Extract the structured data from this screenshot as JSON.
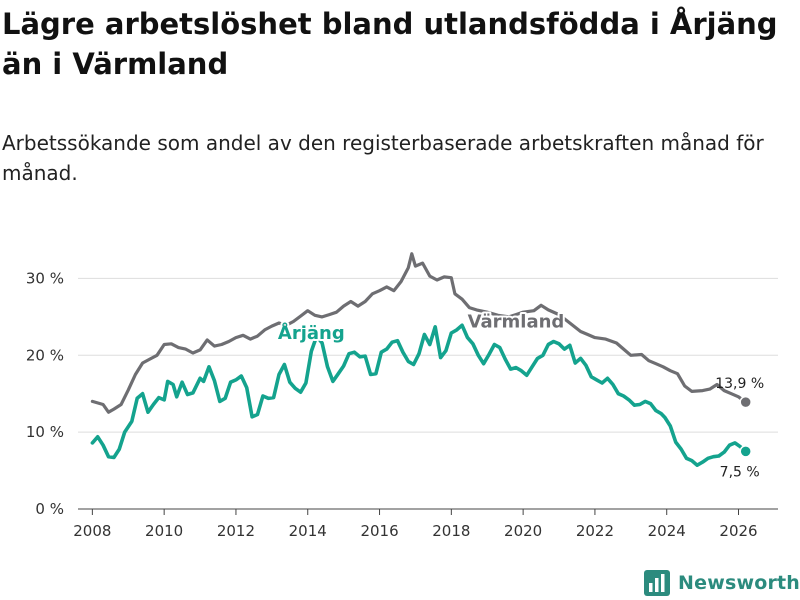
{
  "title": "Lägre arbetslöshet bland utlandsfödda i Årjäng än i Värmland",
  "subtitle": "Arbetssökande som andel av den registerbaserade arbetskraften månad för månad.",
  "logo": {
    "text": "Newsworthy"
  },
  "chart_data": {
    "type": "line",
    "title": "Lägre arbetslöshet bland utlandsfödda i Årjäng än i Värmland",
    "subtitle": "Arbetssökande som andel av den registerbaserade arbetskraften månad för månad.",
    "xlabel": "",
    "ylabel": "",
    "xlim": [
      2007.6,
      2027.1
    ],
    "ylim": [
      0,
      35
    ],
    "x_ticks": [
      {
        "value": 2008,
        "label": "2008"
      },
      {
        "value": 2010,
        "label": "2010"
      },
      {
        "value": 2012,
        "label": "2012"
      },
      {
        "value": 2014,
        "label": "2014"
      },
      {
        "value": 2016,
        "label": "2016"
      },
      {
        "value": 2018,
        "label": "2018"
      },
      {
        "value": 2020,
        "label": "2020"
      },
      {
        "value": 2022,
        "label": "2022"
      },
      {
        "value": 2024,
        "label": "2024"
      },
      {
        "value": 2026,
        "label": "2026"
      }
    ],
    "y_ticks": [
      {
        "value": 0,
        "label": "0 %"
      },
      {
        "value": 10,
        "label": "10 %"
      },
      {
        "value": 20,
        "label": "20 %"
      },
      {
        "value": 30,
        "label": "30 %"
      }
    ],
    "grid": "horizontal",
    "series": [
      {
        "name": "Värmland",
        "color": "#6e6e72",
        "end_label": "13,9 %",
        "end_marker": true,
        "points": [
          [
            2008.0,
            14.0
          ],
          [
            2008.3,
            13.6
          ],
          [
            2008.45,
            12.6
          ],
          [
            2008.6,
            13.0
          ],
          [
            2008.8,
            13.6
          ],
          [
            2009.0,
            15.5
          ],
          [
            2009.2,
            17.5
          ],
          [
            2009.4,
            19.0
          ],
          [
            2009.6,
            19.5
          ],
          [
            2009.8,
            20.0
          ],
          [
            2010.0,
            21.4
          ],
          [
            2010.2,
            21.5
          ],
          [
            2010.4,
            21.0
          ],
          [
            2010.6,
            20.8
          ],
          [
            2010.8,
            20.3
          ],
          [
            2011.0,
            20.7
          ],
          [
            2011.2,
            22.0
          ],
          [
            2011.4,
            21.2
          ],
          [
            2011.6,
            21.4
          ],
          [
            2011.8,
            21.8
          ],
          [
            2012.0,
            22.3
          ],
          [
            2012.2,
            22.6
          ],
          [
            2012.4,
            22.1
          ],
          [
            2012.6,
            22.5
          ],
          [
            2012.8,
            23.3
          ],
          [
            2013.0,
            23.8
          ],
          [
            2013.2,
            24.2
          ],
          [
            2013.4,
            23.9
          ],
          [
            2013.6,
            24.4
          ],
          [
            2013.8,
            25.1
          ],
          [
            2014.0,
            25.8
          ],
          [
            2014.2,
            25.2
          ],
          [
            2014.4,
            25.0
          ],
          [
            2014.6,
            25.3
          ],
          [
            2014.8,
            25.6
          ],
          [
            2015.0,
            26.4
          ],
          [
            2015.2,
            27.0
          ],
          [
            2015.4,
            26.4
          ],
          [
            2015.6,
            27.0
          ],
          [
            2015.8,
            28.0
          ],
          [
            2016.0,
            28.4
          ],
          [
            2016.2,
            28.9
          ],
          [
            2016.4,
            28.4
          ],
          [
            2016.6,
            29.6
          ],
          [
            2016.8,
            31.4
          ],
          [
            2016.9,
            33.2
          ],
          [
            2017.0,
            31.6
          ],
          [
            2017.2,
            32.0
          ],
          [
            2017.4,
            30.3
          ],
          [
            2017.6,
            29.8
          ],
          [
            2017.8,
            30.2
          ],
          [
            2018.0,
            30.1
          ],
          [
            2018.1,
            28.0
          ],
          [
            2018.3,
            27.3
          ],
          [
            2018.5,
            26.2
          ],
          [
            2018.7,
            25.9
          ],
          [
            2019.0,
            25.6
          ],
          [
            2019.3,
            25.2
          ],
          [
            2019.6,
            25.0
          ],
          [
            2019.8,
            25.3
          ],
          [
            2020.0,
            25.6
          ],
          [
            2020.3,
            25.8
          ],
          [
            2020.5,
            26.5
          ],
          [
            2020.7,
            25.9
          ],
          [
            2021.0,
            25.3
          ],
          [
            2021.3,
            24.2
          ],
          [
            2021.6,
            23.1
          ],
          [
            2021.8,
            22.7
          ],
          [
            2022.0,
            22.3
          ],
          [
            2022.3,
            22.1
          ],
          [
            2022.6,
            21.6
          ],
          [
            2022.8,
            20.8
          ],
          [
            2023.0,
            20.0
          ],
          [
            2023.3,
            20.1
          ],
          [
            2023.5,
            19.3
          ],
          [
            2023.7,
            18.9
          ],
          [
            2023.9,
            18.5
          ],
          [
            2024.1,
            18.0
          ],
          [
            2024.3,
            17.6
          ],
          [
            2024.5,
            16.0
          ],
          [
            2024.7,
            15.3
          ],
          [
            2025.0,
            15.4
          ],
          [
            2025.2,
            15.6
          ],
          [
            2025.4,
            16.2
          ],
          [
            2025.6,
            15.4
          ],
          [
            2025.8,
            15.0
          ],
          [
            2026.0,
            14.6
          ],
          [
            2026.2,
            13.9
          ]
        ]
      },
      {
        "name": "Årjäng",
        "color": "#14a38e",
        "end_label": "7,5 %",
        "end_marker": true,
        "points": [
          [
            2008.0,
            8.6
          ],
          [
            2008.15,
            9.4
          ],
          [
            2008.3,
            8.3
          ],
          [
            2008.45,
            6.8
          ],
          [
            2008.6,
            6.7
          ],
          [
            2008.75,
            7.8
          ],
          [
            2008.9,
            10.0
          ],
          [
            2009.1,
            11.4
          ],
          [
            2009.25,
            14.4
          ],
          [
            2009.4,
            15.0
          ],
          [
            2009.55,
            12.6
          ],
          [
            2009.7,
            13.6
          ],
          [
            2009.85,
            14.5
          ],
          [
            2010.0,
            14.2
          ],
          [
            2010.1,
            16.6
          ],
          [
            2010.25,
            16.2
          ],
          [
            2010.35,
            14.6
          ],
          [
            2010.5,
            16.5
          ],
          [
            2010.65,
            14.9
          ],
          [
            2010.8,
            15.1
          ],
          [
            2011.0,
            17.0
          ],
          [
            2011.1,
            16.6
          ],
          [
            2011.25,
            18.5
          ],
          [
            2011.4,
            16.7
          ],
          [
            2011.55,
            14.0
          ],
          [
            2011.7,
            14.4
          ],
          [
            2011.85,
            16.5
          ],
          [
            2012.0,
            16.8
          ],
          [
            2012.15,
            17.3
          ],
          [
            2012.3,
            15.8
          ],
          [
            2012.45,
            12.0
          ],
          [
            2012.6,
            12.3
          ],
          [
            2012.75,
            14.7
          ],
          [
            2012.9,
            14.4
          ],
          [
            2013.05,
            14.5
          ],
          [
            2013.2,
            17.5
          ],
          [
            2013.35,
            18.8
          ],
          [
            2013.5,
            16.5
          ],
          [
            2013.65,
            15.7
          ],
          [
            2013.8,
            15.2
          ],
          [
            2013.95,
            16.4
          ],
          [
            2014.1,
            20.5
          ],
          [
            2014.25,
            22.5
          ],
          [
            2014.4,
            21.6
          ],
          [
            2014.55,
            18.5
          ],
          [
            2014.7,
            16.6
          ],
          [
            2014.85,
            17.6
          ],
          [
            2015.0,
            18.6
          ],
          [
            2015.15,
            20.2
          ],
          [
            2015.3,
            20.4
          ],
          [
            2015.45,
            19.8
          ],
          [
            2015.6,
            19.9
          ],
          [
            2015.75,
            17.5
          ],
          [
            2015.9,
            17.6
          ],
          [
            2016.05,
            20.4
          ],
          [
            2016.2,
            20.8
          ],
          [
            2016.35,
            21.7
          ],
          [
            2016.5,
            21.9
          ],
          [
            2016.65,
            20.4
          ],
          [
            2016.8,
            19.2
          ],
          [
            2016.95,
            18.8
          ],
          [
            2017.1,
            20.2
          ],
          [
            2017.25,
            22.7
          ],
          [
            2017.4,
            21.4
          ],
          [
            2017.55,
            23.7
          ],
          [
            2017.7,
            19.7
          ],
          [
            2017.85,
            20.6
          ],
          [
            2018.0,
            22.9
          ],
          [
            2018.15,
            23.3
          ],
          [
            2018.3,
            23.9
          ],
          [
            2018.45,
            22.3
          ],
          [
            2018.6,
            21.5
          ],
          [
            2018.75,
            20.0
          ],
          [
            2018.9,
            18.9
          ],
          [
            2019.05,
            20.1
          ],
          [
            2019.2,
            21.4
          ],
          [
            2019.35,
            21.0
          ],
          [
            2019.5,
            19.5
          ],
          [
            2019.65,
            18.2
          ],
          [
            2019.8,
            18.4
          ],
          [
            2019.95,
            18.0
          ],
          [
            2020.1,
            17.4
          ],
          [
            2020.25,
            18.5
          ],
          [
            2020.4,
            19.6
          ],
          [
            2020.55,
            20.0
          ],
          [
            2020.7,
            21.4
          ],
          [
            2020.85,
            21.8
          ],
          [
            2021.0,
            21.5
          ],
          [
            2021.15,
            20.8
          ],
          [
            2021.3,
            21.3
          ],
          [
            2021.45,
            19.0
          ],
          [
            2021.6,
            19.6
          ],
          [
            2021.75,
            18.7
          ],
          [
            2021.9,
            17.2
          ],
          [
            2022.05,
            16.8
          ],
          [
            2022.2,
            16.4
          ],
          [
            2022.35,
            17.0
          ],
          [
            2022.5,
            16.2
          ],
          [
            2022.65,
            15.0
          ],
          [
            2022.8,
            14.7
          ],
          [
            2022.95,
            14.2
          ],
          [
            2023.1,
            13.5
          ],
          [
            2023.25,
            13.6
          ],
          [
            2023.4,
            14.0
          ],
          [
            2023.55,
            13.7
          ],
          [
            2023.7,
            12.8
          ],
          [
            2023.85,
            12.4
          ],
          [
            2023.95,
            11.9
          ],
          [
            2024.1,
            10.8
          ],
          [
            2024.25,
            8.7
          ],
          [
            2024.4,
            7.8
          ],
          [
            2024.55,
            6.6
          ],
          [
            2024.7,
            6.3
          ],
          [
            2024.85,
            5.7
          ],
          [
            2025.0,
            6.1
          ],
          [
            2025.15,
            6.6
          ],
          [
            2025.3,
            6.8
          ],
          [
            2025.45,
            6.9
          ],
          [
            2025.6,
            7.4
          ],
          [
            2025.75,
            8.3
          ],
          [
            2025.9,
            8.6
          ],
          [
            2026.05,
            8.1
          ],
          [
            2026.2,
            7.5
          ]
        ]
      }
    ],
    "annotations": [
      {
        "series": "Årjäng",
        "text": "Årjäng",
        "x": 2014.1,
        "y": 22.9
      },
      {
        "series": "Värmland",
        "text": "Värmland",
        "x": 2019.8,
        "y": 24.4
      }
    ]
  }
}
